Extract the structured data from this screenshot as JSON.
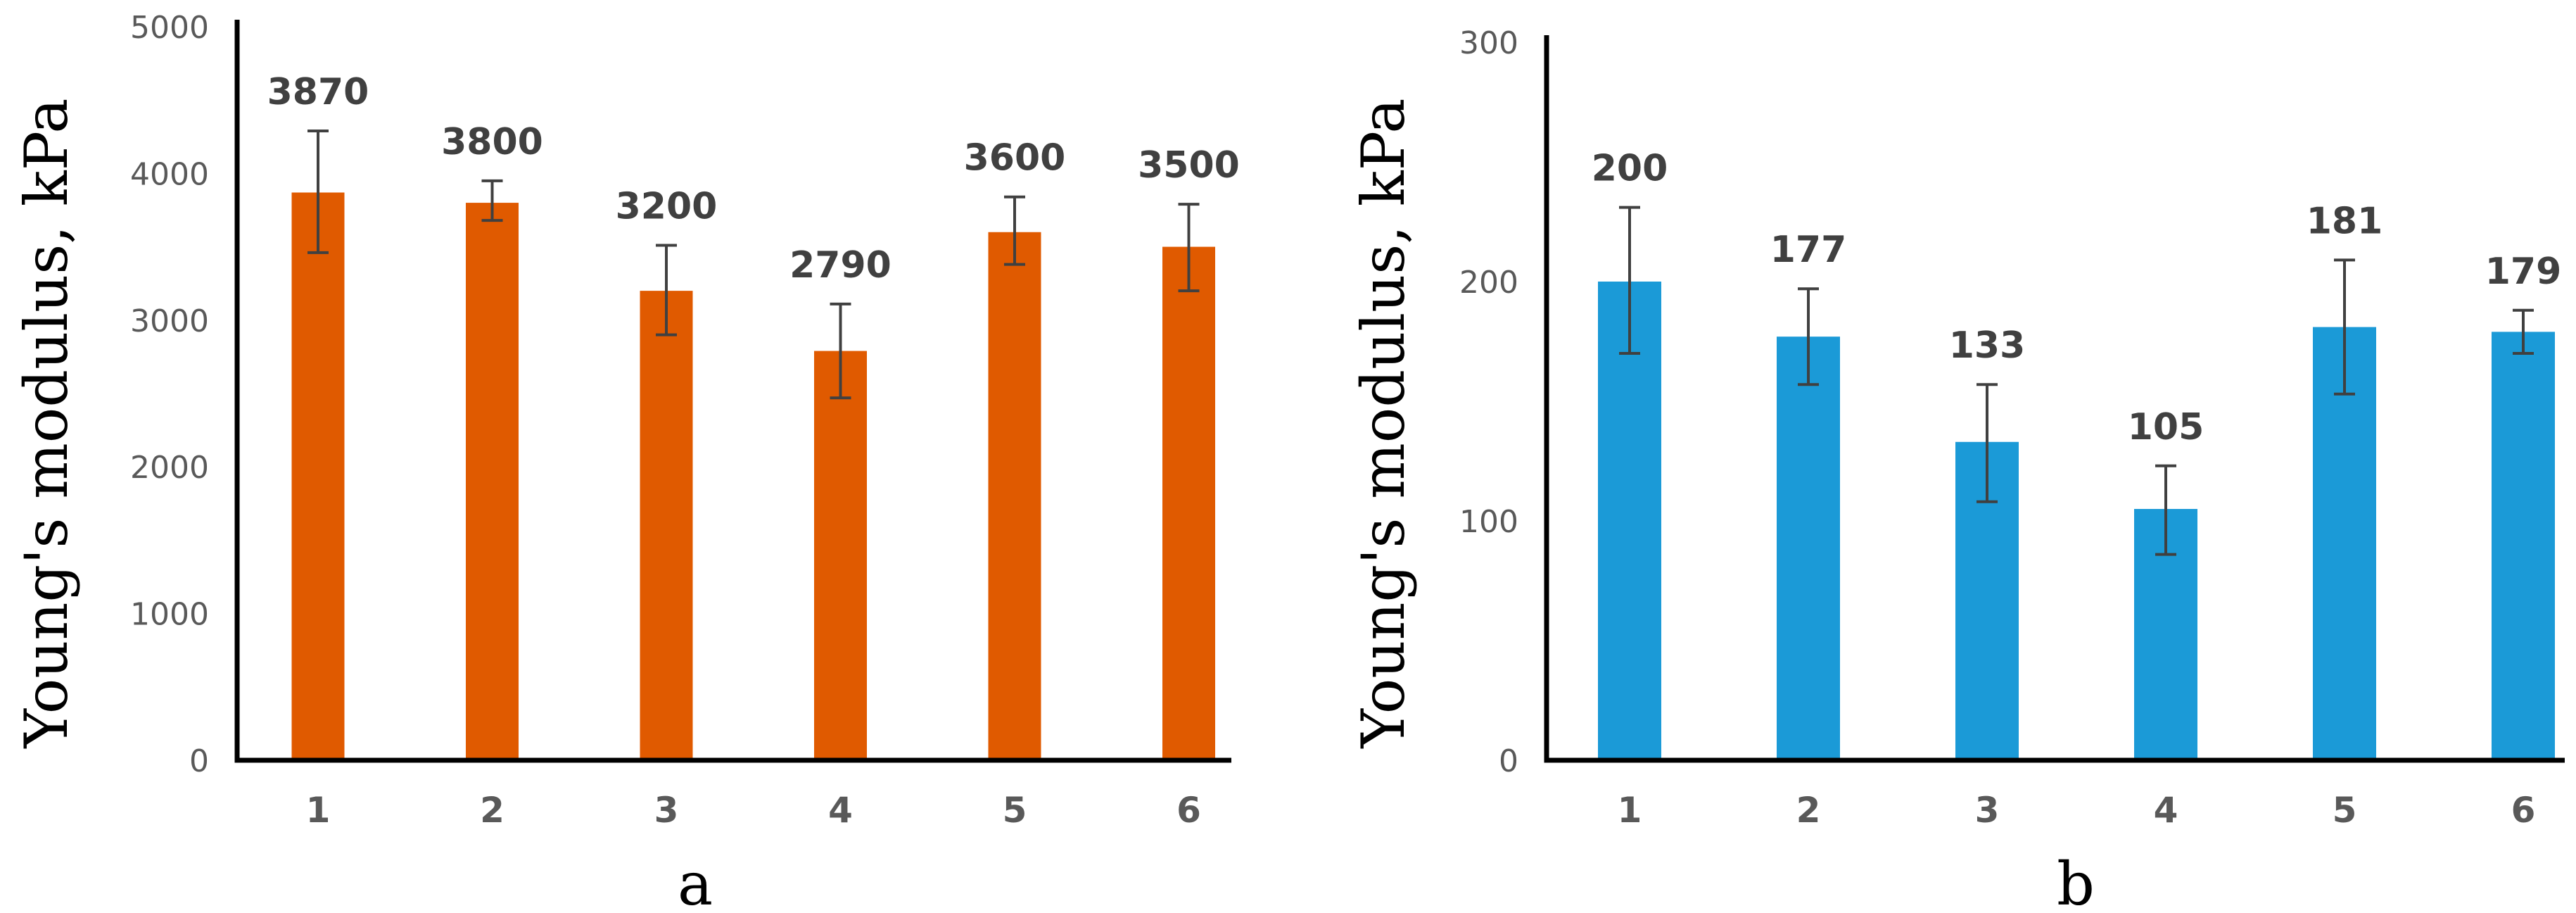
{
  "chart_data": [
    {
      "type": "bar",
      "panel_label": "a",
      "ylabel": "Young's modulus, kPa",
      "xlabel": "",
      "categories": [
        "1",
        "2",
        "3",
        "4",
        "5",
        "6"
      ],
      "values": [
        3870,
        3800,
        3200,
        2790,
        3600,
        3500
      ],
      "error_low": [
        3460,
        3680,
        2900,
        2470,
        3380,
        3200
      ],
      "error_high": [
        4290,
        3950,
        3510,
        3110,
        3840,
        3790
      ],
      "data_labels": [
        "3870",
        "3800",
        "3200",
        "2790",
        "3600",
        "3500"
      ],
      "ylim": [
        0,
        5000
      ],
      "yticks": [
        0,
        1000,
        2000,
        3000,
        4000,
        5000
      ],
      "ytick_labels": [
        "0",
        "1000",
        "2000",
        "3000",
        "4000",
        "5000"
      ],
      "color": "#E05A00",
      "grid": false
    },
    {
      "type": "bar",
      "panel_label": "b",
      "ylabel": "Young's modulus, kPa",
      "xlabel": "",
      "categories": [
        "1",
        "2",
        "3",
        "4",
        "5",
        "6"
      ],
      "values": [
        200,
        177,
        133,
        105,
        181,
        179
      ],
      "error_low": [
        170,
        157,
        108,
        86,
        153,
        170
      ],
      "error_high": [
        231,
        197,
        157,
        123,
        209,
        188
      ],
      "data_labels": [
        "200",
        "177",
        "133",
        "105",
        "181",
        "179"
      ],
      "ylim": [
        0,
        300
      ],
      "yticks": [
        0,
        100,
        200,
        300
      ],
      "ytick_labels": [
        "0",
        "100",
        "200",
        "300"
      ],
      "color": "#1B9AD7",
      "grid": false
    }
  ]
}
